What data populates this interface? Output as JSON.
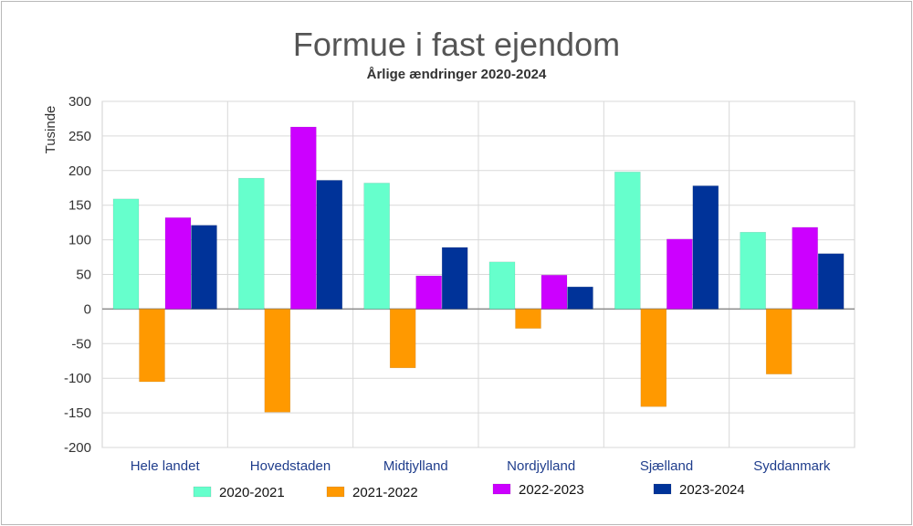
{
  "chart_data": {
    "type": "bar",
    "title": "Formue i fast ejendom",
    "subtitle": "Årlige ændringer 2020-2024",
    "ylabel": "Tusinde",
    "xlabel": "",
    "ylim": [
      -200,
      300
    ],
    "yticks": [
      300,
      250,
      200,
      150,
      100,
      50,
      0,
      -50,
      -100,
      -150,
      -200
    ],
    "grid": true,
    "legend_position": "bottom",
    "categories": [
      "Hele landet",
      "Hovedstaden",
      "Midtjylland",
      "Nordjylland",
      "Sjælland",
      "Syddanmark"
    ],
    "series": [
      {
        "name": "2020-2021",
        "color": "#66ffcc",
        "values": [
          159,
          189,
          182,
          68,
          198,
          111
        ]
      },
      {
        "name": "2021-2022",
        "color": "#ff9900",
        "values": [
          -105,
          -149,
          -85,
          -28,
          -141,
          -94
        ]
      },
      {
        "name": "2022-2023",
        "color": "#cc00ff",
        "values": [
          132,
          263,
          48,
          49,
          101,
          118
        ]
      },
      {
        "name": "2023-2024",
        "color": "#003399",
        "values": [
          121,
          186,
          89,
          32,
          178,
          80
        ]
      }
    ]
  }
}
